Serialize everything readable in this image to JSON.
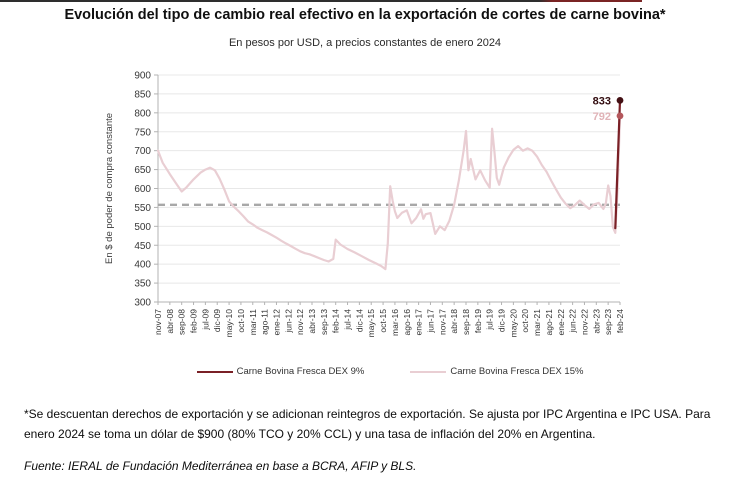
{
  "header": {
    "title": "Evolución del tipo de cambio real efectivo en la exportación de cortes de carne bovina*",
    "subtitle": "En pesos por USD, a precios constantes de enero 2024"
  },
  "chart_data": {
    "type": "line",
    "title": "Evolución del tipo de cambio real efectivo en la exportación de cortes de carne bovina*",
    "subtitle": "En pesos por USD, a precios constantes de enero 2024",
    "ylabel": "En $ de poder de compra constante",
    "xlabel": "",
    "ylim": [
      300,
      900
    ],
    "ytick_step": 50,
    "grid": true,
    "legend_position": "bottom",
    "months_total": 196,
    "x_tick_every_months": 5,
    "x_tick_labels": [
      "nov-07",
      "abr-08",
      "sep-08",
      "feb-09",
      "jul-09",
      "dic-09",
      "may-10",
      "oct-10",
      "mar-11",
      "ago-11",
      "ene-12",
      "jun-12",
      "nov-12",
      "abr-13",
      "sep-13",
      "feb-14",
      "jul-14",
      "dic-14",
      "may-15",
      "oct-15",
      "mar-16",
      "ago-16",
      "ene-17",
      "jun-17",
      "nov-17",
      "abr-18",
      "sep-18",
      "feb-19",
      "jul-19",
      "dic-19",
      "may-20",
      "oct-20",
      "mar-21",
      "ago-21",
      "ene-22",
      "jun-22",
      "nov-22",
      "abr-23",
      "sep-23",
      "feb-24"
    ],
    "reference_line": {
      "value": 557,
      "color": "#a8a8a8",
      "style": "dashed"
    },
    "series": [
      {
        "name": "Carne Bovina Fresca DEX 15%",
        "color": "#e9ced3",
        "end_label": "792",
        "end_label_color": "#e0b3b7",
        "end_marker_color": "#b4575c",
        "points": [
          [
            0,
            700
          ],
          [
            2,
            668
          ],
          [
            5,
            638
          ],
          [
            8,
            610
          ],
          [
            10,
            592
          ],
          [
            12,
            603
          ],
          [
            15,
            624
          ],
          [
            18,
            642
          ],
          [
            20,
            650
          ],
          [
            22,
            655
          ],
          [
            24,
            648
          ],
          [
            26,
            626
          ],
          [
            28,
            598
          ],
          [
            30,
            566
          ],
          [
            32,
            552
          ],
          [
            34,
            540
          ],
          [
            36,
            527
          ],
          [
            38,
            513
          ],
          [
            40,
            505
          ],
          [
            42,
            496
          ],
          [
            44,
            490
          ],
          [
            46,
            484
          ],
          [
            48,
            477
          ],
          [
            50,
            470
          ],
          [
            52,
            462
          ],
          [
            54,
            455
          ],
          [
            56,
            448
          ],
          [
            58,
            441
          ],
          [
            60,
            434
          ],
          [
            62,
            429
          ],
          [
            64,
            426
          ],
          [
            66,
            421
          ],
          [
            68,
            416
          ],
          [
            70,
            411
          ],
          [
            72,
            407
          ],
          [
            74,
            414
          ],
          [
            75,
            465
          ],
          [
            77,
            452
          ],
          [
            80,
            440
          ],
          [
            83,
            431
          ],
          [
            86,
            421
          ],
          [
            89,
            411
          ],
          [
            92,
            402
          ],
          [
            94,
            396
          ],
          [
            96,
            387
          ],
          [
            97,
            455
          ],
          [
            98,
            606
          ],
          [
            99,
            568
          ],
          [
            100,
            540
          ],
          [
            101,
            522
          ],
          [
            103,
            536
          ],
          [
            105,
            542
          ],
          [
            107,
            508
          ],
          [
            109,
            522
          ],
          [
            111,
            545
          ],
          [
            112,
            520
          ],
          [
            113,
            532
          ],
          [
            115,
            535
          ],
          [
            117,
            480
          ],
          [
            119,
            500
          ],
          [
            121,
            490
          ],
          [
            123,
            515
          ],
          [
            125,
            558
          ],
          [
            127,
            622
          ],
          [
            129,
            700
          ],
          [
            130,
            752
          ],
          [
            131,
            648
          ],
          [
            132,
            678
          ],
          [
            134,
            624
          ],
          [
            136,
            648
          ],
          [
            138,
            622
          ],
          [
            140,
            602
          ],
          [
            141,
            758
          ],
          [
            142,
            698
          ],
          [
            143,
            628
          ],
          [
            144,
            610
          ],
          [
            146,
            656
          ],
          [
            148,
            682
          ],
          [
            150,
            702
          ],
          [
            152,
            712
          ],
          [
            154,
            700
          ],
          [
            156,
            706
          ],
          [
            158,
            700
          ],
          [
            160,
            684
          ],
          [
            162,
            662
          ],
          [
            164,
            644
          ],
          [
            166,
            620
          ],
          [
            168,
            598
          ],
          [
            170,
            576
          ],
          [
            172,
            560
          ],
          [
            174,
            548
          ],
          [
            176,
            556
          ],
          [
            178,
            568
          ],
          [
            180,
            556
          ],
          [
            182,
            546
          ],
          [
            184,
            558
          ],
          [
            186,
            562
          ],
          [
            188,
            546
          ],
          [
            189,
            560
          ],
          [
            190,
            608
          ],
          [
            191,
            580
          ],
          [
            192,
            498
          ],
          [
            193,
            483
          ],
          [
            194,
            600
          ],
          [
            195,
            792
          ]
        ]
      },
      {
        "name": "Carne Bovina Fresca DEX 9%",
        "color": "#7a2026",
        "end_label": "833",
        "end_label_color": "#330d10",
        "end_marker_color": "#431014",
        "points": [
          [
            193,
            495
          ],
          [
            194,
            660
          ],
          [
            195,
            833
          ]
        ]
      }
    ]
  },
  "legend": {
    "items": [
      {
        "label": "Carne Bovina Fresca DEX 9%",
        "color": "#7a2026"
      },
      {
        "label": "Carne Bovina Fresca DEX 15%",
        "color": "#e9ced3"
      }
    ]
  },
  "footnote": "*Se descuentan derechos de exportación y se adicionan reintegros de exportación. Se ajusta por IPC Argentina e IPC USA. Para enero 2024 se toma un dólar de $900 (80% TCO y 20% CCL) y una tasa de inflación del 20% en Argentina.",
  "source": "Fuente: IERAL de Fundación Mediterránea en base a BCRA, AFIP y BLS."
}
